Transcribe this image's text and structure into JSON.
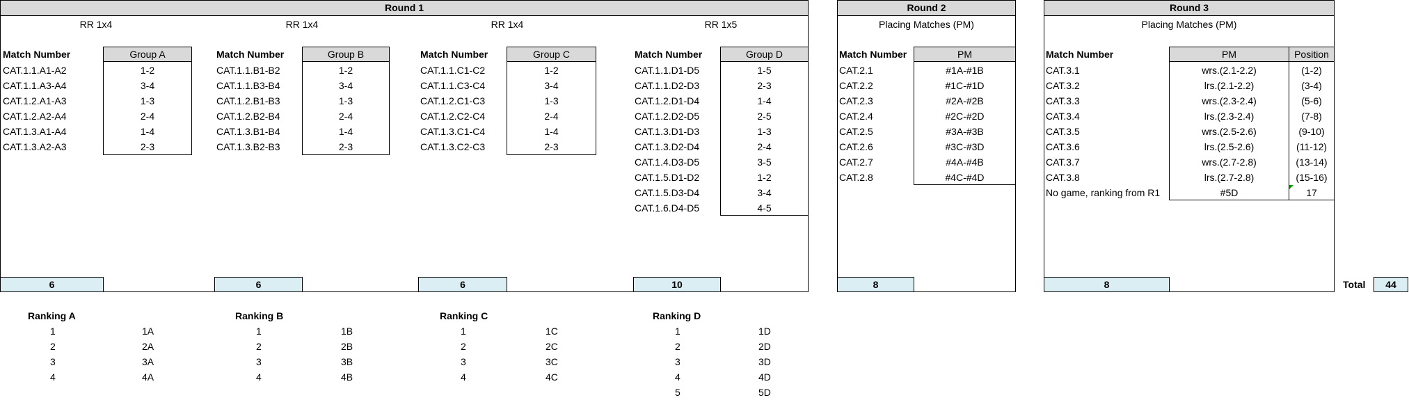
{
  "round1": {
    "title": "Round 1",
    "groups": [
      {
        "format": "RR 1x4",
        "col_header": "Match Number",
        "group_header": "Group A",
        "matches": [
          "CAT.1.1.A1-A2",
          "CAT.1.1.A3-A4",
          "CAT.1.2.A1-A3",
          "CAT.1.2.A2-A4",
          "CAT.1.3.A1-A4",
          "CAT.1.3.A2-A3"
        ],
        "pairs": [
          "1-2",
          "3-4",
          "1-3",
          "2-4",
          "1-4",
          "2-3"
        ],
        "count": "6"
      },
      {
        "format": "RR 1x4",
        "col_header": "Match Number",
        "group_header": "Group B",
        "matches": [
          "CAT.1.1.B1-B2",
          "CAT.1.1.B3-B4",
          "CAT.1.2.B1-B3",
          "CAT.1.2.B2-B4",
          "CAT.1.3.B1-B4",
          "CAT.1.3.B2-B3"
        ],
        "pairs": [
          "1-2",
          "3-4",
          "1-3",
          "2-4",
          "1-4",
          "2-3"
        ],
        "count": "6"
      },
      {
        "format": "RR 1x4",
        "col_header": "Match Number",
        "group_header": "Group C",
        "matches": [
          "CAT.1.1.C1-C2",
          "CAT.1.1.C3-C4",
          "CAT.1.2.C1-C3",
          "CAT.1.2.C2-C4",
          "CAT.1.3.C1-C4",
          "CAT.1.3.C2-C3"
        ],
        "pairs": [
          "1-2",
          "3-4",
          "1-3",
          "2-4",
          "1-4",
          "2-3"
        ],
        "count": "6"
      },
      {
        "format": "RR 1x5",
        "col_header": "Match Number",
        "group_header": "Group D",
        "matches": [
          "CAT.1.1.D1-D5",
          "CAT.1.1.D2-D3",
          "CAT.1.2.D1-D4",
          "CAT.1.2.D2-D5",
          "CAT.1.3.D1-D3",
          "CAT.1.3.D2-D4",
          "CAT.1.4.D3-D5",
          "CAT.1.5.D1-D2",
          "CAT.1.5.D3-D4",
          "CAT.1.6.D4-D5"
        ],
        "pairs": [
          "1-5",
          "2-3",
          "1-4",
          "2-5",
          "1-3",
          "2-4",
          "3-5",
          "1-2",
          "3-4",
          "4-5"
        ],
        "count": "10"
      }
    ]
  },
  "round2": {
    "title": "Round 2",
    "subtitle": "Placing Matches (PM)",
    "col_header": "Match Number",
    "pm_header": "PM",
    "matches": [
      "CAT.2.1",
      "CAT.2.2",
      "CAT.2.3",
      "CAT.2.4",
      "CAT.2.5",
      "CAT.2.6",
      "CAT.2.7",
      "CAT.2.8"
    ],
    "pm": [
      "#1A-#1B",
      "#1C-#1D",
      "#2A-#2B",
      "#2C-#2D",
      "#3A-#3B",
      "#3C-#3D",
      "#4A-#4B",
      "#4C-#4D"
    ],
    "count": "8"
  },
  "round3": {
    "title": "Round 3",
    "subtitle": "Placing Matches (PM)",
    "col_header": "Match Number",
    "pm_header": "PM",
    "pos_header": "Position",
    "matches": [
      "CAT.3.1",
      "CAT.3.2",
      "CAT.3.3",
      "CAT.3.4",
      "CAT.3.5",
      "CAT.3.6",
      "CAT.3.7",
      "CAT.3.8",
      "No game, ranking from R1"
    ],
    "pm": [
      "wrs.(2.1-2.2)",
      "lrs.(2.1-2.2)",
      "wrs.(2.3-2.4)",
      "lrs.(2.3-2.4)",
      "wrs.(2.5-2.6)",
      "lrs.(2.5-2.6)",
      "wrs.(2.7-2.8)",
      "lrs.(2.7-2.8)",
      "#5D"
    ],
    "positions": [
      "(1-2)",
      "(3-4)",
      "(5-6)",
      "(7-8)",
      "(9-10)",
      "(11-12)",
      "(13-14)",
      "(15-16)",
      "17"
    ],
    "count": "8"
  },
  "total": {
    "label": "Total",
    "value": "44"
  },
  "rankings": [
    {
      "title": "Ranking A",
      "rows": [
        [
          "1",
          "1A"
        ],
        [
          "2",
          "2A"
        ],
        [
          "3",
          "3A"
        ],
        [
          "4",
          "4A"
        ]
      ]
    },
    {
      "title": "Ranking B",
      "rows": [
        [
          "1",
          "1B"
        ],
        [
          "2",
          "2B"
        ],
        [
          "3",
          "3B"
        ],
        [
          "4",
          "4B"
        ]
      ]
    },
    {
      "title": "Ranking C",
      "rows": [
        [
          "1",
          "1C"
        ],
        [
          "2",
          "2C"
        ],
        [
          "3",
          "3C"
        ],
        [
          "4",
          "4C"
        ]
      ]
    },
    {
      "title": "Ranking D",
      "rows": [
        [
          "1",
          "1D"
        ],
        [
          "2",
          "2D"
        ],
        [
          "3",
          "3D"
        ],
        [
          "4",
          "4D"
        ],
        [
          "5",
          "5D"
        ]
      ]
    }
  ]
}
